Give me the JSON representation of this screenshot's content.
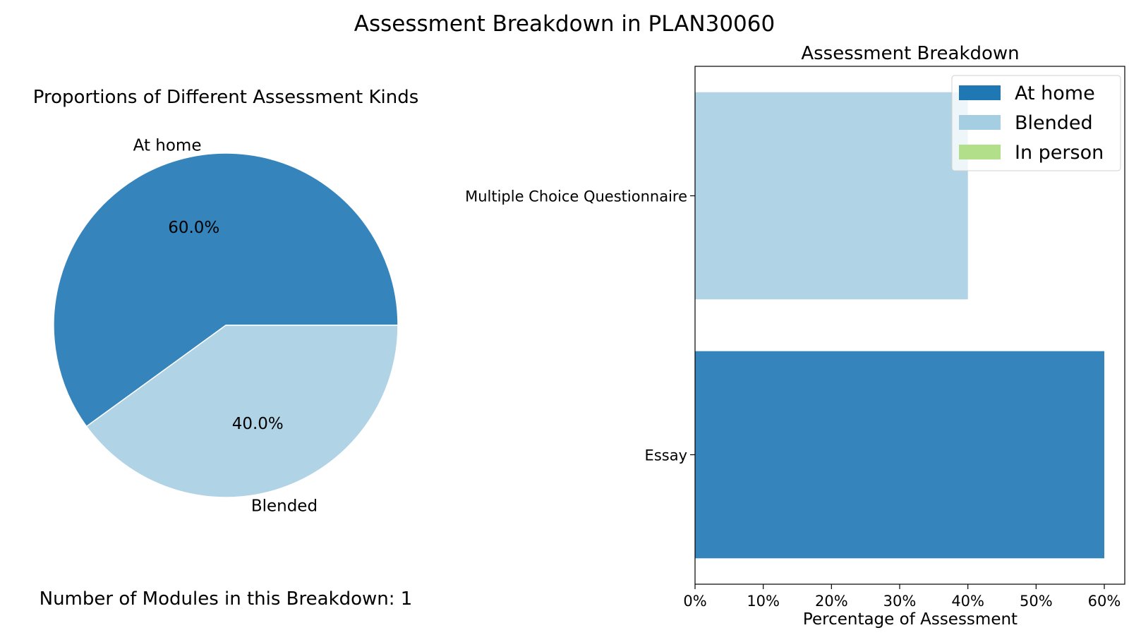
{
  "figure": {
    "title": "Assessment Breakdown in PLAN30060",
    "footnote": "Number of Modules in this Breakdown: 1"
  },
  "chart_data": [
    {
      "type": "pie",
      "title": "Proportions of Different Assessment Kinds",
      "slices": [
        {
          "label": "At home",
          "value": 60.0,
          "pct_label": "60.0%",
          "color": "#3584bb"
        },
        {
          "label": "Blended",
          "value": 40.0,
          "pct_label": "40.0%",
          "color": "#b0d3e5"
        }
      ]
    },
    {
      "type": "bar",
      "orientation": "horizontal",
      "stacked": true,
      "title": "Assessment Breakdown",
      "xlabel": "Percentage of Assessment",
      "ylabel": "",
      "categories": [
        "Essay",
        "Multiple Choice Questionnaire"
      ],
      "series": [
        {
          "name": "At home",
          "color": "#3584bb",
          "values": [
            60,
            0
          ]
        },
        {
          "name": "Blended",
          "color": "#b0d3e5",
          "values": [
            0,
            40
          ]
        },
        {
          "name": "In person",
          "color": "#b2df8a",
          "values": [
            0,
            0
          ]
        }
      ],
      "xlim": [
        0,
        63
      ],
      "xticks": [
        {
          "value": 0,
          "label": "0%"
        },
        {
          "value": 10,
          "label": "10%"
        },
        {
          "value": 20,
          "label": "20%"
        },
        {
          "value": 30,
          "label": "30%"
        },
        {
          "value": 40,
          "label": "40%"
        },
        {
          "value": 50,
          "label": "50%"
        },
        {
          "value": 60,
          "label": "60%"
        }
      ],
      "legend": {
        "placement": "top-right",
        "entries": [
          {
            "label": "At home",
            "color": "#1f77b4"
          },
          {
            "label": "Blended",
            "color": "#a6cee3"
          },
          {
            "label": "In person",
            "color": "#b2df8a"
          }
        ]
      },
      "grid": false
    }
  ]
}
